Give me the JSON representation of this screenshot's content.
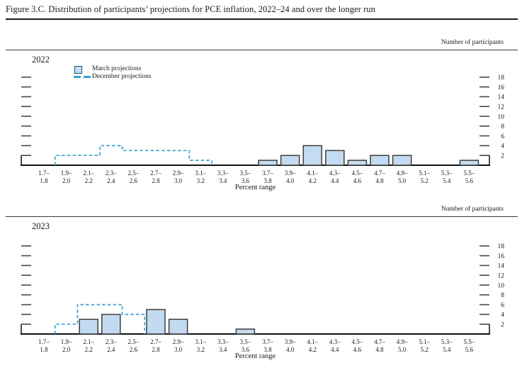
{
  "title": "Figure 3.C. Distribution of participants’ projections for PCE inflation, 2022–24 and over the longer run",
  "right_axis_label": "Number of participants",
  "x_axis_label": "Percent range",
  "legend": {
    "march_label": "March projections",
    "december_label": "December projections"
  },
  "colors": {
    "bar_fill": "#c3dbf1",
    "bar_border": "#3d3d3d",
    "dashed_line": "#3e9fd0",
    "legend_swatch_border": "#1f4e79",
    "axis": "#111111",
    "tick": "#4a4a4a",
    "text": "#1a1a1a"
  },
  "y_ticks": [
    2,
    4,
    6,
    8,
    10,
    12,
    14,
    16,
    18
  ],
  "chart_data": [
    {
      "type": "bar",
      "panel_label": "2022",
      "xlabel": "Percent range",
      "ylabel": "Number of participants",
      "ylim": [
        0,
        19
      ],
      "grid": false,
      "legend_position": "top-left",
      "categories": [
        "1.7–1.8",
        "1.9–2.0",
        "2.1–2.2",
        "2.3–2.4",
        "2.5–2.6",
        "2.7–2.8",
        "2.9–3.0",
        "3.1–3.2",
        "3.3–3.4",
        "3.5–3.6",
        "3.7–3.8",
        "3.9–4.0",
        "4.1–4.2",
        "4.3–4.4",
        "4.5–4.6",
        "4.7–4.8",
        "4.9–5.0",
        "5.1–5.2",
        "5.3–5.4",
        "5.5–5.6"
      ],
      "series": [
        {
          "name": "March projections",
          "style": "bar",
          "values": [
            0,
            0,
            0,
            0,
            0,
            0,
            0,
            0,
            0,
            0,
            1,
            2,
            4,
            3,
            1,
            2,
            2,
            0,
            0,
            1
          ]
        },
        {
          "name": "December projections",
          "style": "dashed-step",
          "values": [
            0,
            2,
            2,
            4,
            3,
            3,
            3,
            1,
            0,
            0,
            0,
            0,
            0,
            0,
            0,
            0,
            0,
            0,
            0,
            0
          ]
        }
      ]
    },
    {
      "type": "bar",
      "panel_label": "2023",
      "xlabel": "Percent range",
      "ylabel": "Number of participants",
      "ylim": [
        0,
        19
      ],
      "grid": false,
      "legend_position": "none",
      "categories": [
        "1.7–1.8",
        "1.9–2.0",
        "2.1–2.2",
        "2.3–2.4",
        "2.5–2.6",
        "2.7–2.8",
        "2.9–3.0",
        "3.1–3.2",
        "3.3–3.4",
        "3.5–3.6",
        "3.7–3.8",
        "3.9–4.0",
        "4.1–4.2",
        "4.3–4.4",
        "4.5–4.6",
        "4.7–4.8",
        "4.9–5.0",
        "5.1–5.2",
        "5.3–5.4",
        "5.5–5.6"
      ],
      "series": [
        {
          "name": "March projections",
          "style": "bar",
          "values": [
            0,
            0,
            3,
            4,
            0,
            5,
            3,
            0,
            0,
            1,
            0,
            0,
            0,
            0,
            0,
            0,
            0,
            0,
            0,
            0
          ]
        },
        {
          "name": "December projections",
          "style": "dashed-step",
          "values": [
            0,
            2,
            6,
            6,
            4,
            0,
            0,
            0,
            0,
            0,
            0,
            0,
            0,
            0,
            0,
            0,
            0,
            0,
            0,
            0
          ]
        }
      ]
    }
  ]
}
